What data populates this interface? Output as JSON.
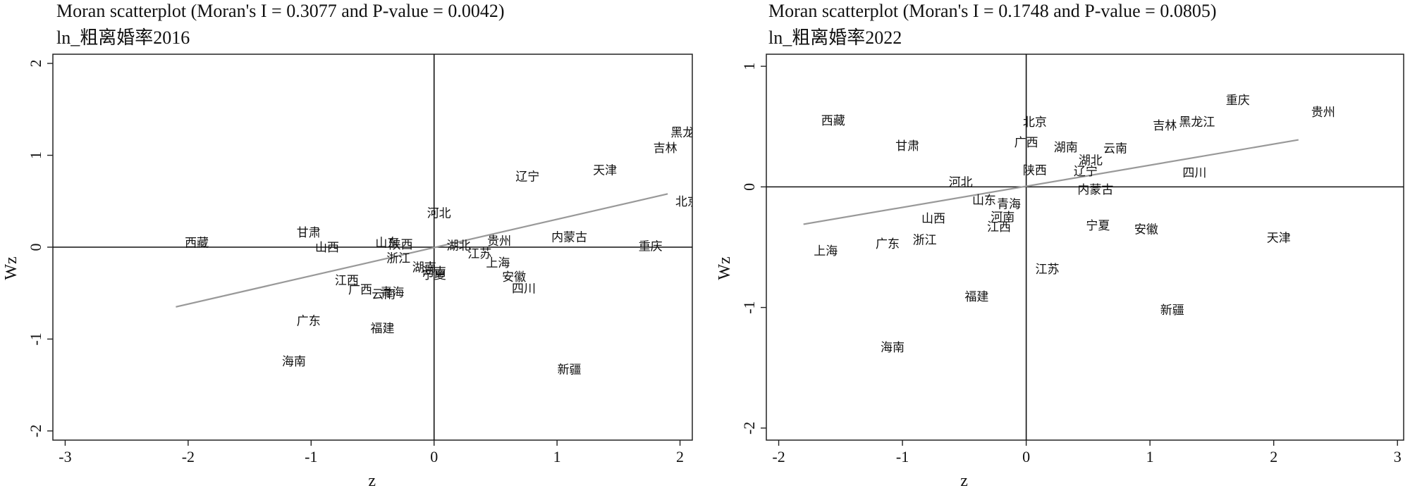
{
  "panels": [
    {
      "title": "Moran scatterplot (Moran's I = 0.3077 and P-value = 0.0042)",
      "subtitle": "ln_粗离婚率2016",
      "chart_data": {
        "type": "scatter",
        "title": "Moran scatterplot (Moran's I = 0.3077 and P-value = 0.0042)",
        "subtitle": "ln_粗离婚率2016",
        "xlabel": "z",
        "ylabel": "Wz",
        "xlim": [
          -3.1,
          2.1
        ],
        "ylim": [
          -2.1,
          2.1
        ],
        "xticks": [
          -3,
          -2,
          -1,
          0,
          1,
          2
        ],
        "xtick_labels": [
          "-3",
          "-2",
          "-1",
          "0",
          "1",
          "2"
        ],
        "yticks": [
          -2,
          -1,
          0,
          1,
          2
        ],
        "ytick_labels": [
          "-2",
          "-1",
          "0",
          "1",
          "2"
        ],
        "fit_line": {
          "x": [
            -2.1,
            1.9
          ],
          "y": [
            -0.65,
            0.58
          ]
        },
        "points": [
          {
            "label": "西藏",
            "x": -1.93,
            "y": 0.05
          },
          {
            "label": "甘肃",
            "x": -1.02,
            "y": 0.16
          },
          {
            "label": "山西",
            "x": -0.87,
            "y": 0.0
          },
          {
            "label": "山东",
            "x": -0.38,
            "y": 0.05
          },
          {
            "label": "陕西",
            "x": -0.27,
            "y": 0.03
          },
          {
            "label": "浙江",
            "x": -0.29,
            "y": -0.12
          },
          {
            "label": "湖南",
            "x": -0.08,
            "y": -0.22
          },
          {
            "label": "河北",
            "x": 0.04,
            "y": 0.37
          },
          {
            "label": "湖北",
            "x": 0.2,
            "y": 0.02
          },
          {
            "label": "贵州",
            "x": 0.53,
            "y": 0.07
          },
          {
            "label": "江苏",
            "x": 0.37,
            "y": -0.07
          },
          {
            "label": "上海",
            "x": 0.52,
            "y": -0.17
          },
          {
            "label": "河南",
            "x": 0.0,
            "y": -0.27
          },
          {
            "label": "宁夏",
            "x": 0.0,
            "y": -0.3
          },
          {
            "label": "江西",
            "x": -0.71,
            "y": -0.36
          },
          {
            "label": "广西",
            "x": -0.6,
            "y": -0.46
          },
          {
            "label": "云南",
            "x": -0.41,
            "y": -0.51
          },
          {
            "label": "青海",
            "x": -0.34,
            "y": -0.49
          },
          {
            "label": "安徽",
            "x": 0.65,
            "y": -0.32
          },
          {
            "label": "四川",
            "x": 0.73,
            "y": -0.45
          },
          {
            "label": "辽宁",
            "x": 0.76,
            "y": 0.77
          },
          {
            "label": "天津",
            "x": 1.39,
            "y": 0.84
          },
          {
            "label": "内蒙古",
            "x": 1.1,
            "y": 0.11
          },
          {
            "label": "黑龙江",
            "x": 2.07,
            "y": 1.25
          },
          {
            "label": "吉林",
            "x": 1.88,
            "y": 1.08
          },
          {
            "label": "北京",
            "x": 2.06,
            "y": 0.5
          },
          {
            "label": "重庆",
            "x": 1.76,
            "y": 0.01
          },
          {
            "label": "广东",
            "x": -1.02,
            "y": -0.8
          },
          {
            "label": "福建",
            "x": -0.42,
            "y": -0.88
          },
          {
            "label": "海南",
            "x": -1.14,
            "y": -1.24
          },
          {
            "label": "新疆",
            "x": 1.1,
            "y": -1.33
          }
        ]
      }
    },
    {
      "title": "Moran scatterplot (Moran's I = 0.1748 and P-value = 0.0805)",
      "subtitle": "ln_粗离婚率2022",
      "chart_data": {
        "type": "scatter",
        "title": "Moran scatterplot (Moran's I = 0.1748 and P-value = 0.0805)",
        "subtitle": "ln_粗离婚率2022",
        "xlabel": "z",
        "ylabel": "Wz",
        "xlim": [
          -2.1,
          3.05
        ],
        "ylim": [
          -2.1,
          1.1
        ],
        "xticks": [
          -2,
          -1,
          0,
          1,
          2,
          3
        ],
        "xtick_labels": [
          "-2",
          "-1",
          "0",
          "1",
          "2",
          "3"
        ],
        "yticks": [
          -2,
          -1,
          0,
          1
        ],
        "ytick_labels": [
          "-2",
          "-1",
          "0",
          "1"
        ],
        "fit_line": {
          "x": [
            -1.8,
            2.2
          ],
          "y": [
            -0.31,
            0.39
          ]
        },
        "points": [
          {
            "label": "西藏",
            "x": -1.56,
            "y": 0.55
          },
          {
            "label": "甘肃",
            "x": -0.96,
            "y": 0.34
          },
          {
            "label": "北京",
            "x": 0.07,
            "y": 0.54
          },
          {
            "label": "广西",
            "x": 0.0,
            "y": 0.37
          },
          {
            "label": "湖南",
            "x": 0.32,
            "y": 0.33
          },
          {
            "label": "云南",
            "x": 0.72,
            "y": 0.32
          },
          {
            "label": "湖北",
            "x": 0.52,
            "y": 0.22
          },
          {
            "label": "辽宁",
            "x": 0.48,
            "y": 0.13
          },
          {
            "label": "陕西",
            "x": 0.07,
            "y": 0.14
          },
          {
            "label": "河北",
            "x": -0.53,
            "y": 0.04
          },
          {
            "label": "内蒙古",
            "x": 0.56,
            "y": -0.02
          },
          {
            "label": "山东",
            "x": -0.34,
            "y": -0.11
          },
          {
            "label": "青海",
            "x": -0.14,
            "y": -0.14
          },
          {
            "label": "河南",
            "x": -0.19,
            "y": -0.25
          },
          {
            "label": "江西",
            "x": -0.22,
            "y": -0.33
          },
          {
            "label": "山西",
            "x": -0.75,
            "y": -0.26
          },
          {
            "label": "宁夏",
            "x": 0.58,
            "y": -0.32
          },
          {
            "label": "安徽",
            "x": 0.97,
            "y": -0.35
          },
          {
            "label": "四川",
            "x": 1.36,
            "y": 0.12
          },
          {
            "label": "吉林",
            "x": 1.12,
            "y": 0.51
          },
          {
            "label": "黑龙江",
            "x": 1.38,
            "y": 0.54
          },
          {
            "label": "重庆",
            "x": 1.71,
            "y": 0.72
          },
          {
            "label": "贵州",
            "x": 2.4,
            "y": 0.62
          },
          {
            "label": "上海",
            "x": -1.62,
            "y": -0.53
          },
          {
            "label": "广东",
            "x": -1.12,
            "y": -0.47
          },
          {
            "label": "浙江",
            "x": -0.82,
            "y": -0.44
          },
          {
            "label": "江苏",
            "x": 0.17,
            "y": -0.68
          },
          {
            "label": "福建",
            "x": -0.4,
            "y": -0.91
          },
          {
            "label": "海南",
            "x": -1.08,
            "y": -1.33
          },
          {
            "label": "新疆",
            "x": 1.18,
            "y": -1.02
          },
          {
            "label": "天津",
            "x": 2.04,
            "y": -0.42
          }
        ]
      }
    }
  ]
}
